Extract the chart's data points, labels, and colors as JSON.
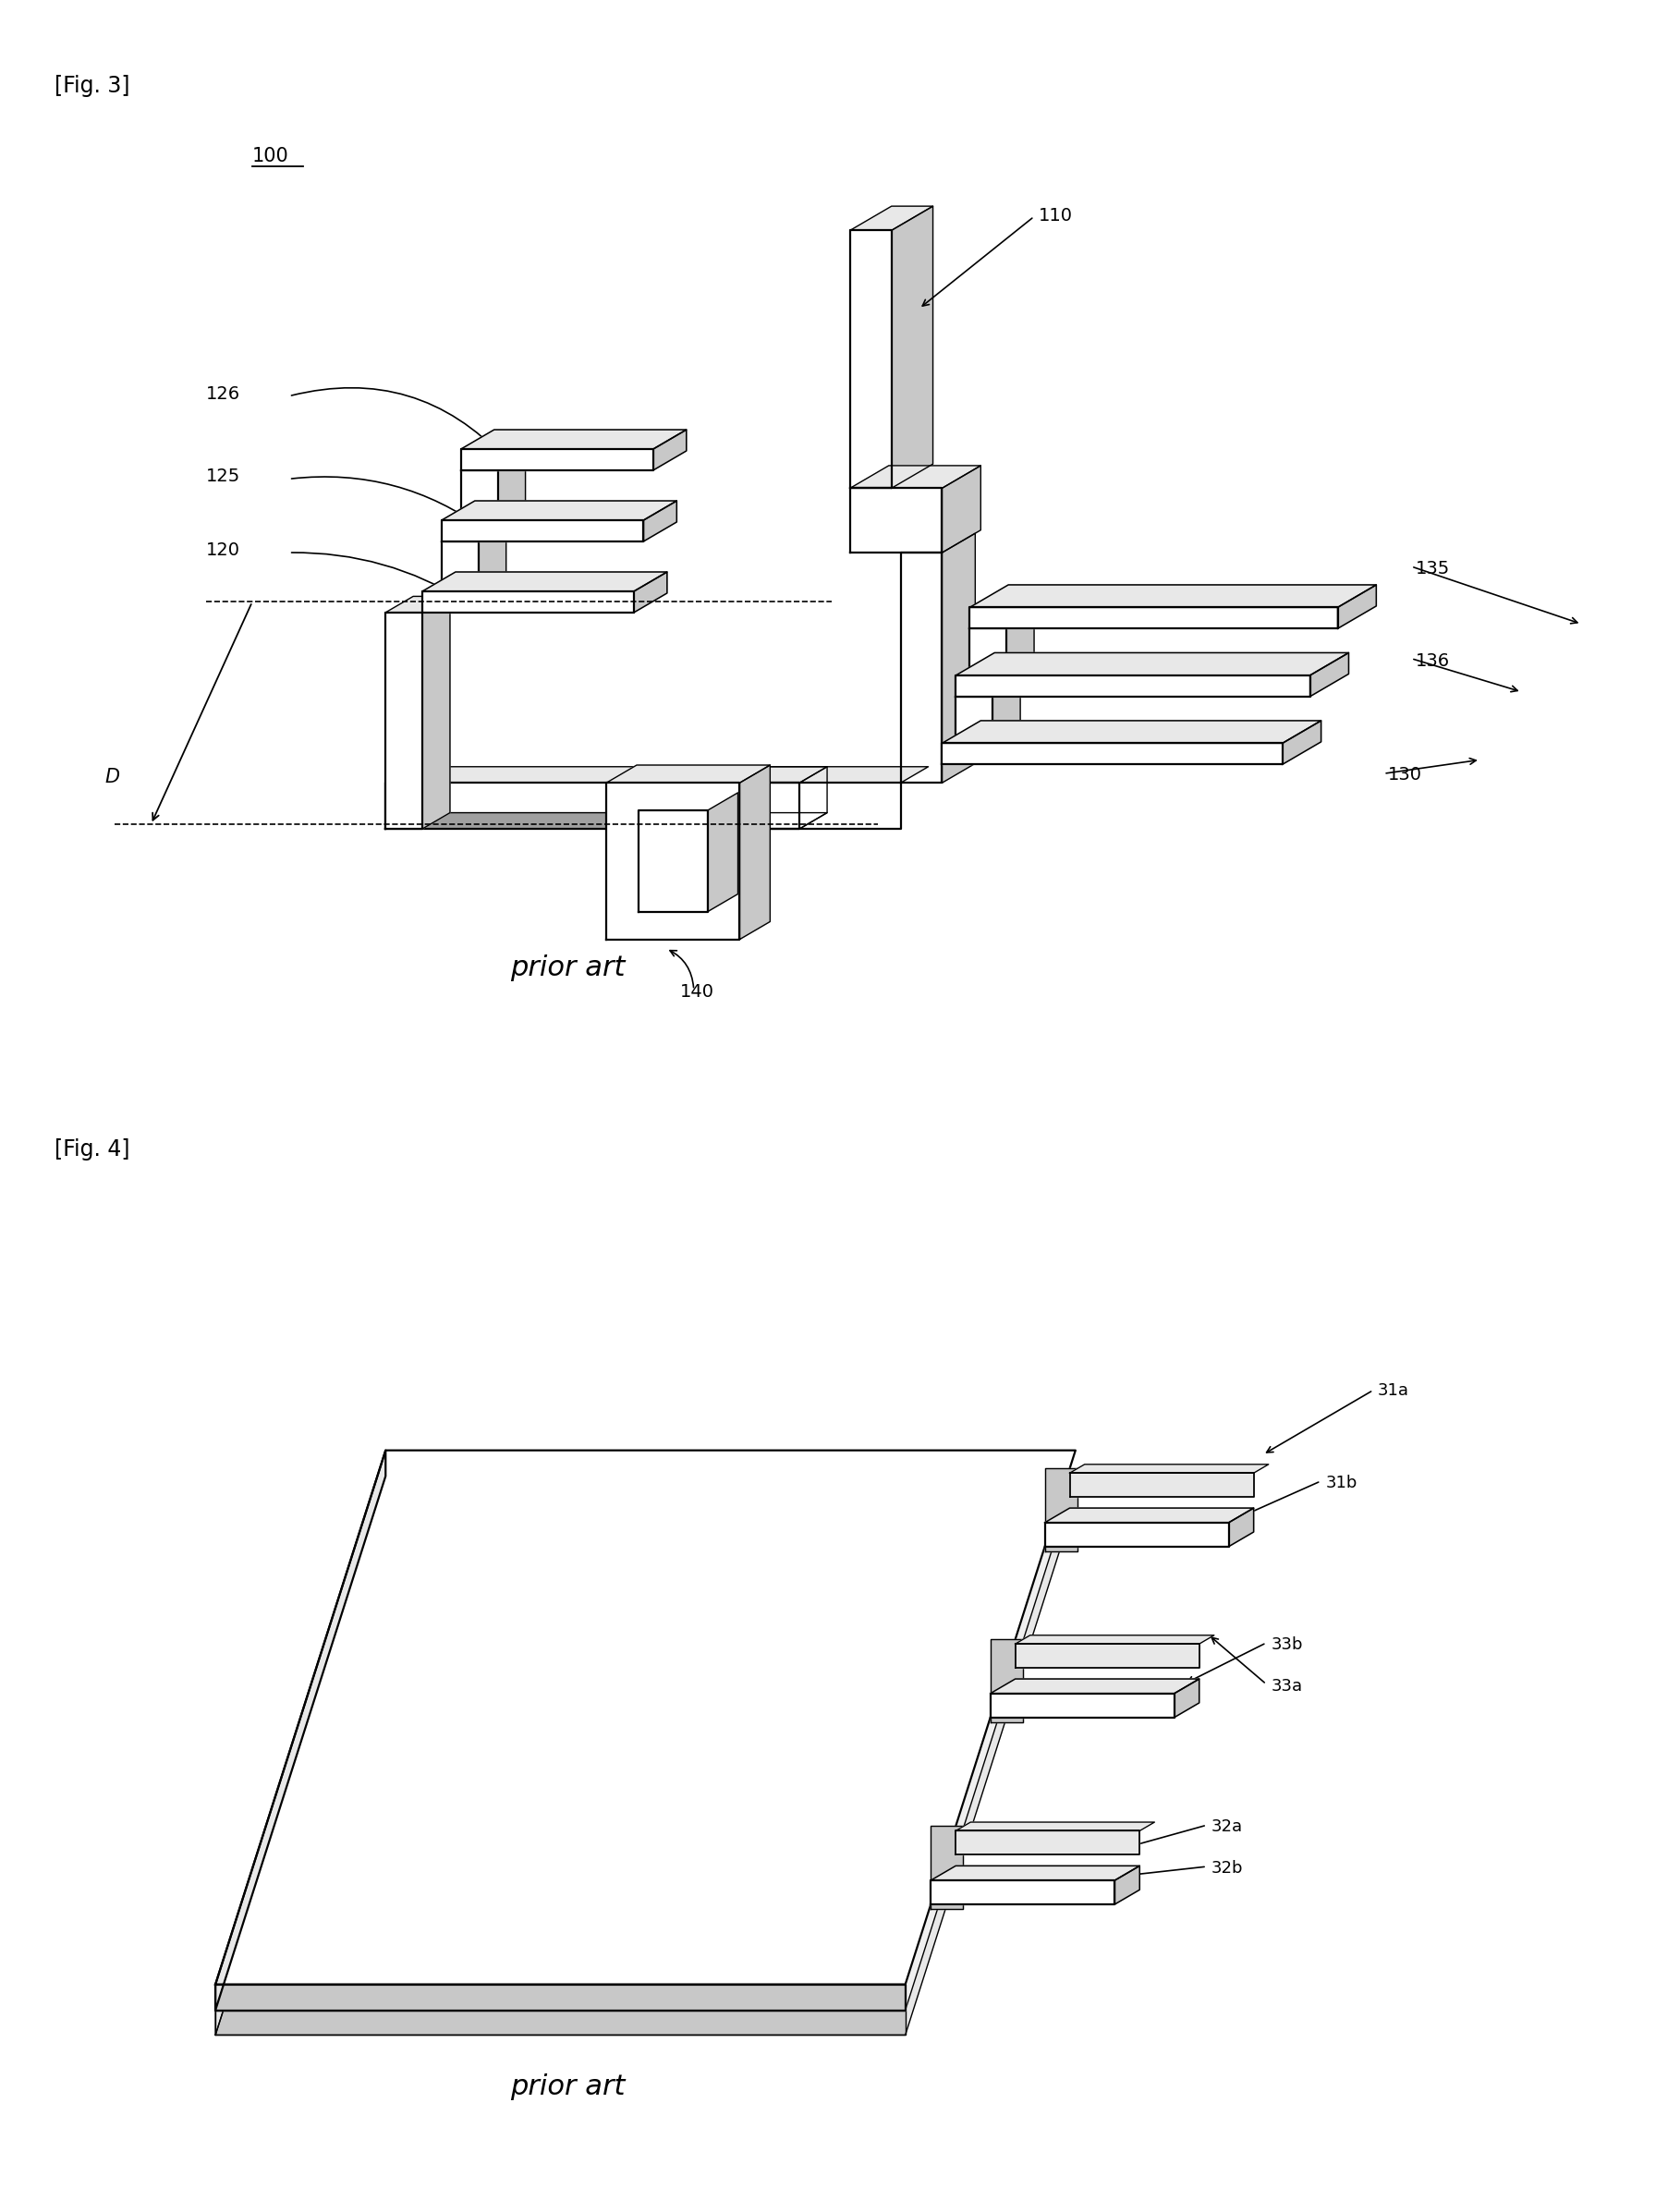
{
  "fig_width": 18.18,
  "fig_height": 23.81,
  "bg_color": "#ffffff",
  "lc": "#000000",
  "fig3_label": "[Fig. 3]",
  "fig4_label": "[Fig. 4]",
  "prior_art": "prior art",
  "ref_100": "100",
  "ref_110": "110",
  "ref_120": "120",
  "ref_125": "125",
  "ref_126": "126",
  "ref_130": "130",
  "ref_135": "135",
  "ref_136": "136",
  "ref_140": "140",
  "ref_D": "D",
  "ref_31a": "31a",
  "ref_31b": "31b",
  "ref_32a": "32a",
  "ref_32b": "32b",
  "ref_33a": "33a",
  "ref_33b": "33b",
  "lw_thin": 1.0,
  "lw_med": 1.6,
  "lw_thick": 2.2,
  "gray_light": "#e8e8e8",
  "gray_mid": "#c8c8c8",
  "gray_dark": "#a0a0a0"
}
